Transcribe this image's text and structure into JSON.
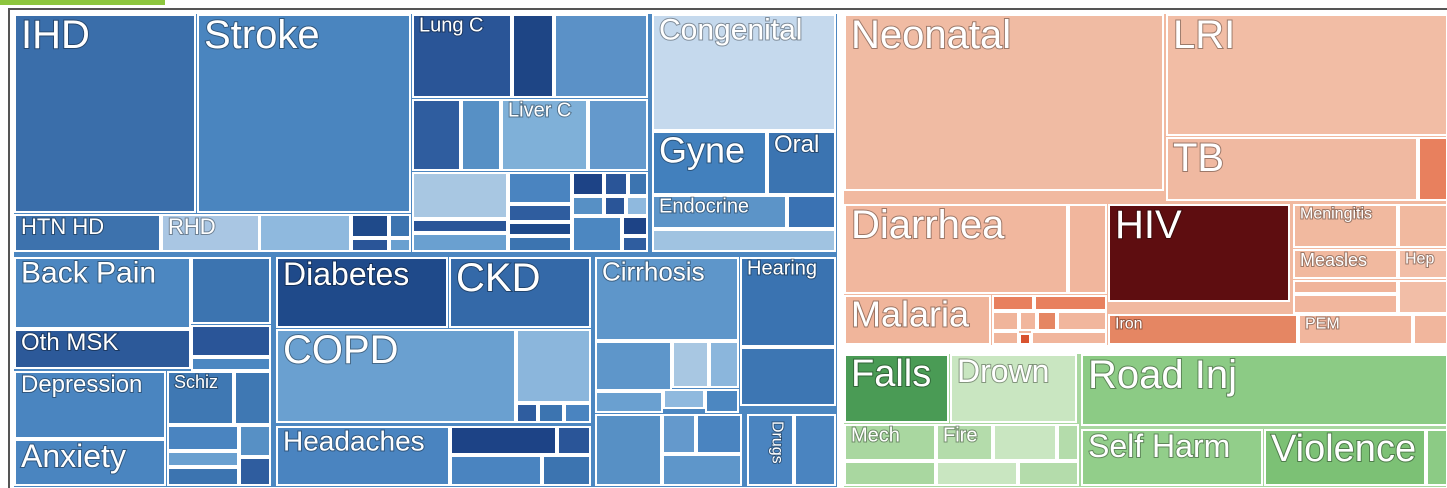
{
  "tiles": [
    "IHD",
    "Stroke",
    "HTN HD",
    "RHD",
    "Lung C",
    "Liver C",
    "Congenital",
    "Gyne",
    "Oral",
    "Endocrine",
    "Back Pain",
    "Oth MSK",
    "Depression",
    "Schiz",
    "Anxiety",
    "Diabetes",
    "CKD",
    "COPD",
    "Headaches",
    "Cirrhosis",
    "Hearing",
    "Drugs",
    "Neonatal",
    "LRI",
    "TB",
    "Diarrhea",
    "HIV",
    "Meningitis",
    "Measles",
    "Hep",
    "Malaria",
    "Iron",
    "PEM",
    "Falls",
    "Drown",
    "Mech",
    "Fire",
    "Road Inj",
    "Self Harm",
    "Violence"
  ]
}
